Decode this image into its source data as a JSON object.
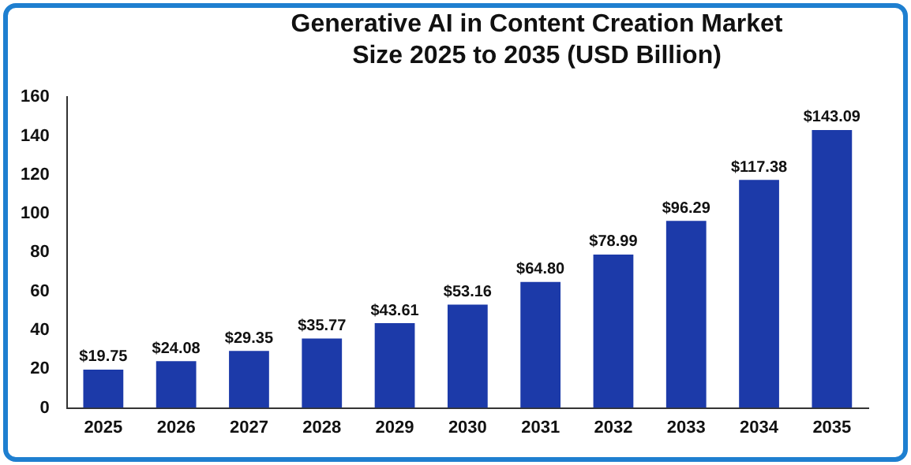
{
  "chart_data": {
    "type": "bar",
    "title": "Generative AI in Content Creation Market Size 2025 to 2035 (USD Billion)",
    "categories": [
      "2025",
      "2026",
      "2027",
      "2028",
      "2029",
      "2030",
      "2031",
      "2032",
      "2033",
      "2034",
      "2035"
    ],
    "values": [
      19.75,
      24.08,
      29.35,
      35.77,
      43.61,
      53.16,
      64.8,
      78.99,
      96.29,
      117.38,
      143.09
    ],
    "value_labels": [
      "$19.75",
      "$24.08",
      "$29.35",
      "$35.77",
      "$43.61",
      "$53.16",
      "$64.80",
      "$78.99",
      "$96.29",
      "$117.38",
      "$143.09"
    ],
    "color": "#1c3aa9",
    "ylim": [
      0,
      160
    ],
    "yticks": [
      0,
      20,
      40,
      60,
      80,
      100,
      120,
      140,
      160
    ],
    "grid": false
  }
}
